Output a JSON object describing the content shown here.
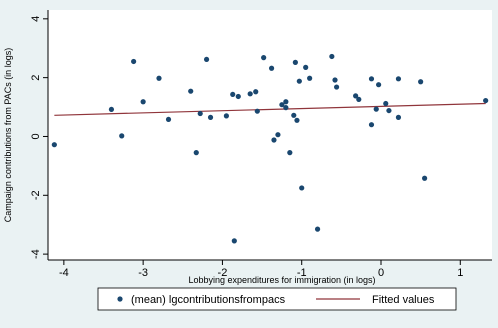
{
  "chart_data": {
    "type": "scatter",
    "xlabel": "Lobbying expenditures for immigration (in logs)",
    "ylabel": "Campaign contributions from PACs (in logs)",
    "xlim": [
      -4.2,
      1.4
    ],
    "ylim": [
      -4.2,
      4.3
    ],
    "xticks": [
      -4,
      -3,
      -2,
      -1,
      0,
      1
    ],
    "yticks": [
      -4,
      -2,
      0,
      2,
      4
    ],
    "grid": false,
    "legend_position": "bottom",
    "colors": {
      "background": "#eaf2f3",
      "plot_area": "#ffffff",
      "markers": "#1a476f",
      "fitted_line": "#90353b"
    },
    "series": [
      {
        "name": "(mean) lgcontributionsfrompacs",
        "type": "scatter",
        "points": [
          {
            "x": -4.12,
            "y": -0.28
          },
          {
            "x": -3.4,
            "y": 0.92
          },
          {
            "x": -3.27,
            "y": 0.02
          },
          {
            "x": -3.12,
            "y": 2.55
          },
          {
            "x": -3.0,
            "y": 1.18
          },
          {
            "x": -2.8,
            "y": 1.98
          },
          {
            "x": -2.68,
            "y": 0.58
          },
          {
            "x": -2.4,
            "y": 1.54
          },
          {
            "x": -2.33,
            "y": -0.55
          },
          {
            "x": -2.28,
            "y": 0.78
          },
          {
            "x": -2.2,
            "y": 2.62
          },
          {
            "x": -2.15,
            "y": 0.65
          },
          {
            "x": -1.95,
            "y": 0.7
          },
          {
            "x": -1.87,
            "y": 1.43
          },
          {
            "x": -1.85,
            "y": -3.55
          },
          {
            "x": -1.8,
            "y": 1.36
          },
          {
            "x": -1.65,
            "y": 1.45
          },
          {
            "x": -1.58,
            "y": 1.52
          },
          {
            "x": -1.56,
            "y": 0.86
          },
          {
            "x": -1.48,
            "y": 2.68
          },
          {
            "x": -1.38,
            "y": 2.32
          },
          {
            "x": -1.35,
            "y": -0.12
          },
          {
            "x": -1.3,
            "y": 0.06
          },
          {
            "x": -1.25,
            "y": 1.08
          },
          {
            "x": -1.2,
            "y": 1.18
          },
          {
            "x": -1.2,
            "y": 0.98
          },
          {
            "x": -1.15,
            "y": -0.55
          },
          {
            "x": -1.1,
            "y": 0.72
          },
          {
            "x": -1.08,
            "y": 2.52
          },
          {
            "x": -1.06,
            "y": 0.55
          },
          {
            "x": -1.03,
            "y": 1.88
          },
          {
            "x": -1.0,
            "y": -1.75
          },
          {
            "x": -0.95,
            "y": 2.35
          },
          {
            "x": -0.9,
            "y": 1.98
          },
          {
            "x": -0.8,
            "y": -3.15
          },
          {
            "x": -0.62,
            "y": 2.72
          },
          {
            "x": -0.58,
            "y": 1.92
          },
          {
            "x": -0.56,
            "y": 1.68
          },
          {
            "x": -0.32,
            "y": 1.38
          },
          {
            "x": -0.28,
            "y": 1.26
          },
          {
            "x": -0.12,
            "y": 1.96
          },
          {
            "x": -0.12,
            "y": 0.4
          },
          {
            "x": -0.06,
            "y": 0.93
          },
          {
            "x": -0.03,
            "y": 1.76
          },
          {
            "x": 0.06,
            "y": 1.12
          },
          {
            "x": 0.1,
            "y": 0.88
          },
          {
            "x": 0.22,
            "y": 1.96
          },
          {
            "x": 0.22,
            "y": 0.65
          },
          {
            "x": 0.5,
            "y": 1.86
          },
          {
            "x": 0.55,
            "y": -1.42
          },
          {
            "x": 1.32,
            "y": 1.22
          }
        ]
      },
      {
        "name": "Fitted values",
        "type": "line",
        "points": [
          {
            "x": -4.12,
            "y": 0.72
          },
          {
            "x": 1.32,
            "y": 1.12
          }
        ]
      }
    ]
  }
}
